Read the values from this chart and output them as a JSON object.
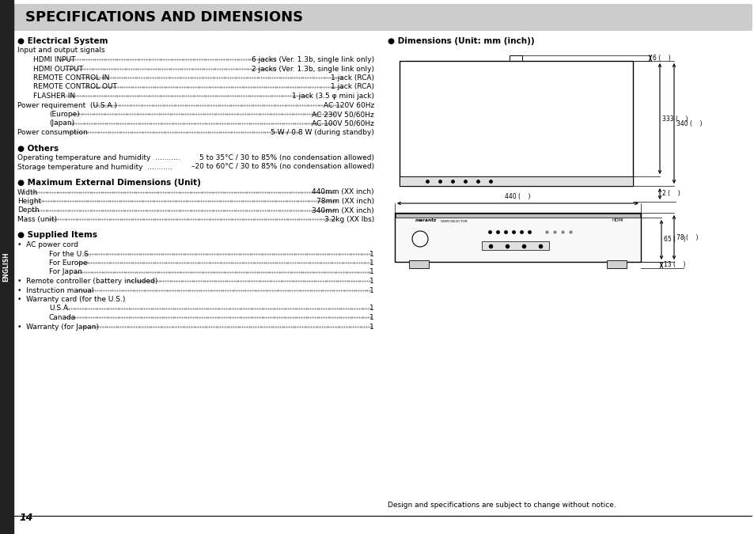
{
  "title": "SPECIFICATIONS AND DIMENSIONS",
  "title_bg": "#cccccc",
  "page_bg": "#ffffff",
  "sidebar_bg": "#222222",
  "sidebar_text": "ENGLISH",
  "left_sections": [
    {
      "heading": "Electrical System",
      "items": [
        {
          "label": "Input and output signals",
          "value": "",
          "indent": 0,
          "dots": false
        },
        {
          "label": "HDMI INPUT",
          "value": "6 jacks (Ver. 1.3b, single link only)",
          "indent": 1,
          "dots": true
        },
        {
          "label": "HDMI OUTPUT",
          "value": "2 jacks (Ver. 1.3b, single link only)",
          "indent": 1,
          "dots": true
        },
        {
          "label": "REMOTE CONTROL IN",
          "value": "1 jack (RCA)",
          "indent": 1,
          "dots": true
        },
        {
          "label": "REMOTE CONTROL OUT",
          "value": "1 jack (RCA)",
          "indent": 1,
          "dots": true
        },
        {
          "label": "FLASHER IN",
          "value": "1 jack (3.5 φ mini jack)",
          "indent": 1,
          "dots": true
        },
        {
          "label": "Power requirement  (U.S.A.)",
          "value": "AC 120V 60Hz",
          "indent": 0,
          "dots": true
        },
        {
          "label": "(Europe)",
          "value": "AC 230V 50/60Hz",
          "indent": 2,
          "dots": true
        },
        {
          "label": "(Japan)",
          "value": "AC 100V 50/60Hz",
          "indent": 2,
          "dots": true
        },
        {
          "label": "Power consumption",
          "value": "5 W / 0.8 W (during standby)",
          "indent": 0,
          "dots": true
        }
      ]
    },
    {
      "heading": "Others",
      "items": [
        {
          "label": "Operating temperature and humidity  ...........",
          "value": "5 to 35°C / 30 to 85% (no condensation allowed)",
          "indent": 0,
          "dots": false
        },
        {
          "label": "Storage temperature and humidity  ...........",
          "value": "–20 to 60°C / 30 to 85% (no condensation allowed)",
          "indent": 0,
          "dots": false
        }
      ]
    },
    {
      "heading": "Maximum External Dimensions (Unit)",
      "items": [
        {
          "label": "Width",
          "value": "440mm (XX inch)",
          "indent": 0,
          "dots": true
        },
        {
          "label": "Height",
          "value": "78mm (XX inch)",
          "indent": 0,
          "dots": true
        },
        {
          "label": "Depth",
          "value": "340mm (XX inch)",
          "indent": 0,
          "dots": true
        },
        {
          "label": "Mass (unit)",
          "value": "3.2kg (XX lbs)",
          "indent": 0,
          "dots": true
        }
      ]
    },
    {
      "heading": "Supplied Items",
      "items": [
        {
          "label": "•  AC power cord",
          "value": "",
          "indent": 0,
          "dots": false
        },
        {
          "label": "For the U.S.",
          "value": "1",
          "indent": 2,
          "dots": true
        },
        {
          "label": "For Europe",
          "value": "1",
          "indent": 2,
          "dots": true
        },
        {
          "label": "For Japan",
          "value": "1",
          "indent": 2,
          "dots": true
        },
        {
          "label": "•  Remote controller (battery included)",
          "value": "1",
          "indent": 0,
          "dots": true
        },
        {
          "label": "•  Instruction manual",
          "value": "1",
          "indent": 0,
          "dots": true
        },
        {
          "label": "•  Warranty card (for the U.S.)",
          "value": "",
          "indent": 0,
          "dots": false
        },
        {
          "label": "U.S.A.",
          "value": "1",
          "indent": 2,
          "dots": true
        },
        {
          "label": "Canada",
          "value": "1",
          "indent": 2,
          "dots": true
        },
        {
          "label": "•  Warranty (for Japan)",
          "value": "1",
          "indent": 0,
          "dots": true
        }
      ]
    }
  ],
  "dim_heading": "Dimensions (Unit: mm (inch))",
  "footer": "Design and specifications are subject to change without notice.",
  "page_num": "14",
  "text_color": "#000000",
  "dot_color": "#555555"
}
